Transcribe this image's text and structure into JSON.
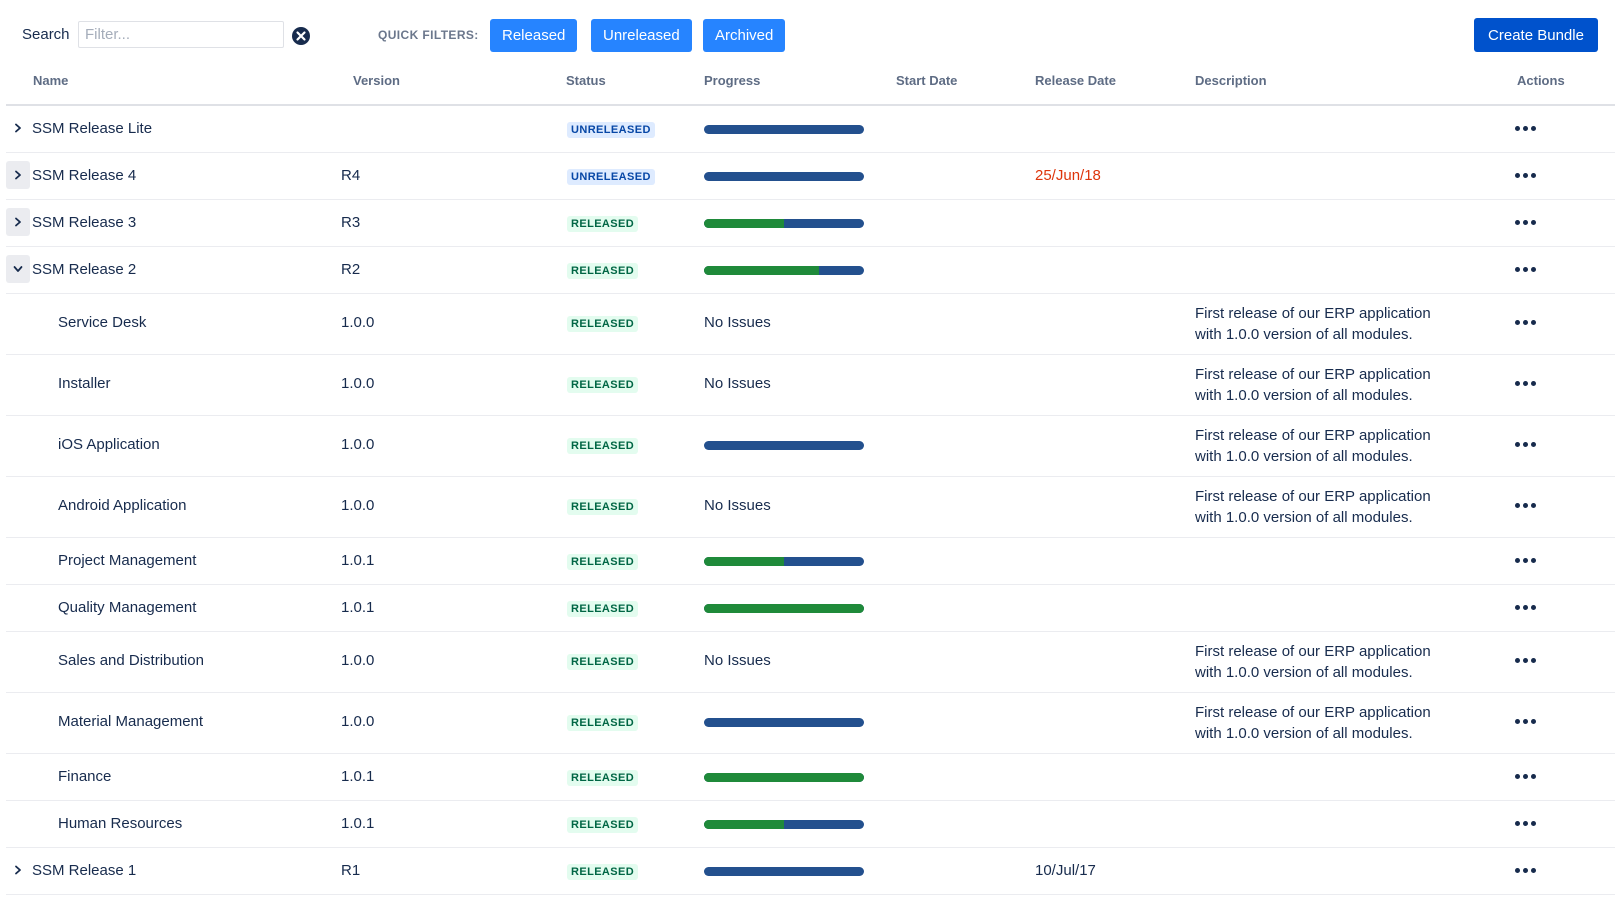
{
  "toolbar": {
    "search_label": "Search",
    "search_placeholder": "Filter...",
    "search_value": "",
    "quick_filters_label": "QUICK FILTERS:",
    "filters": [
      "Released",
      "Unreleased",
      "Archived"
    ],
    "create_label": "Create Bundle"
  },
  "columns": {
    "name": "Name",
    "version": "Version",
    "status": "Status",
    "progress": "Progress",
    "start_date": "Start Date",
    "release_date": "Release Date",
    "description": "Description",
    "actions": "Actions"
  },
  "colors": {
    "primary": "#0052cc",
    "filter": "#2684ff",
    "progress_done": "#1f8a3a",
    "progress_todo": "#23508e",
    "overdue": "#de350b"
  },
  "rows": [
    {
      "name": "SSM Release Lite",
      "version": "",
      "status": "UNRELEASED",
      "progress_done": 0,
      "progress_text": "",
      "start_date": "",
      "release_date": "",
      "release_overdue": false,
      "description": "",
      "expander": "collapsed"
    },
    {
      "name": "SSM Release 4",
      "version": "R4",
      "status": "UNRELEASED",
      "progress_done": 0,
      "progress_text": "",
      "start_date": "",
      "release_date": "25/Jun/18",
      "release_overdue": true,
      "description": "",
      "expander": "collapsed"
    },
    {
      "name": "SSM Release 3",
      "version": "R3",
      "status": "RELEASED",
      "progress_done": 0.5,
      "progress_text": "",
      "start_date": "",
      "release_date": "",
      "release_overdue": false,
      "description": "",
      "expander": "collapsed"
    },
    {
      "name": "SSM Release 2",
      "version": "R2",
      "status": "RELEASED",
      "progress_done": 0.72,
      "progress_text": "",
      "start_date": "",
      "release_date": "",
      "release_overdue": false,
      "description": "",
      "expander": "expanded"
    },
    {
      "name": "Service Desk",
      "version": "1.0.0",
      "status": "RELEASED",
      "progress_done": null,
      "progress_text": "No Issues",
      "start_date": "",
      "release_date": "",
      "release_overdue": false,
      "description": [
        "First release of our ERP application",
        "with 1.0.0 version of all modules."
      ],
      "child": true
    },
    {
      "name": "Installer",
      "version": "1.0.0",
      "status": "RELEASED",
      "progress_done": null,
      "progress_text": "No Issues",
      "start_date": "",
      "release_date": "",
      "release_overdue": false,
      "description": [
        "First release of our ERP application",
        "with 1.0.0 version of all modules."
      ],
      "child": true
    },
    {
      "name": "iOS Application",
      "version": "1.0.0",
      "status": "RELEASED",
      "progress_done": 0,
      "progress_text": "",
      "start_date": "",
      "release_date": "",
      "release_overdue": false,
      "description": [
        "First release of our ERP application",
        "with 1.0.0 version of all modules."
      ],
      "child": true
    },
    {
      "name": "Android Application",
      "version": "1.0.0",
      "status": "RELEASED",
      "progress_done": null,
      "progress_text": "No Issues",
      "start_date": "",
      "release_date": "",
      "release_overdue": false,
      "description": [
        "First release of our ERP application",
        "with 1.0.0 version of all modules."
      ],
      "child": true
    },
    {
      "name": "Project Management",
      "version": "1.0.1",
      "status": "RELEASED",
      "progress_done": 0.5,
      "progress_text": "",
      "start_date": "",
      "release_date": "",
      "release_overdue": false,
      "description": "",
      "child": true
    },
    {
      "name": "Quality Management",
      "version": "1.0.1",
      "status": "RELEASED",
      "progress_done": 1,
      "progress_text": "",
      "start_date": "",
      "release_date": "",
      "release_overdue": false,
      "description": "",
      "child": true
    },
    {
      "name": "Sales and Distribution",
      "version": "1.0.0",
      "status": "RELEASED",
      "progress_done": null,
      "progress_text": "No Issues",
      "start_date": "",
      "release_date": "",
      "release_overdue": false,
      "description": [
        "First release of our ERP application",
        "with 1.0.0 version of all modules."
      ],
      "child": true
    },
    {
      "name": "Material Management",
      "version": "1.0.0",
      "status": "RELEASED",
      "progress_done": 0,
      "progress_text": "",
      "start_date": "",
      "release_date": "",
      "release_overdue": false,
      "description": [
        "First release of our ERP application",
        "with 1.0.0 version of all modules."
      ],
      "child": true
    },
    {
      "name": "Finance",
      "version": "1.0.1",
      "status": "RELEASED",
      "progress_done": 1,
      "progress_text": "",
      "start_date": "",
      "release_date": "",
      "release_overdue": false,
      "description": "",
      "child": true
    },
    {
      "name": "Human Resources",
      "version": "1.0.1",
      "status": "RELEASED",
      "progress_done": 0.5,
      "progress_text": "",
      "start_date": "",
      "release_date": "",
      "release_overdue": false,
      "description": "",
      "child": true
    },
    {
      "name": "SSM Release 1",
      "version": "R1",
      "status": "RELEASED",
      "progress_done": 0,
      "progress_text": "",
      "start_date": "",
      "release_date": "10/Jul/17",
      "release_overdue": false,
      "description": "",
      "expander": "collapsed"
    }
  ]
}
